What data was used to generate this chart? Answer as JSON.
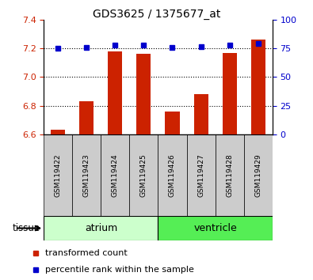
{
  "title": "GDS3625 / 1375677_at",
  "samples": [
    "GSM119422",
    "GSM119423",
    "GSM119424",
    "GSM119425",
    "GSM119426",
    "GSM119427",
    "GSM119428",
    "GSM119429"
  ],
  "bar_values": [
    6.63,
    6.83,
    7.18,
    7.16,
    6.76,
    6.88,
    7.17,
    7.26
  ],
  "percentile_values": [
    75,
    76,
    78,
    78,
    75.5,
    76.5,
    78,
    79
  ],
  "bar_bottom": 6.6,
  "ylim_left": [
    6.6,
    7.4
  ],
  "ylim_right": [
    0,
    100
  ],
  "yticks_left": [
    6.6,
    6.8,
    7.0,
    7.2,
    7.4
  ],
  "yticks_right": [
    0,
    25,
    50,
    75,
    100
  ],
  "dotted_lines": [
    6.8,
    7.0,
    7.2
  ],
  "bar_color": "#cc2200",
  "dot_color": "#0000cc",
  "tissue_groups": [
    {
      "label": "atrium",
      "samples": [
        0,
        1,
        2,
        3
      ],
      "color": "#ccffcc",
      "dark_color": "#66ee66"
    },
    {
      "label": "ventricle",
      "samples": [
        4,
        5,
        6,
        7
      ],
      "color": "#66ee66",
      "dark_color": "#33cc33"
    }
  ],
  "tissue_label": "tissue",
  "legend_items": [
    {
      "label": "transformed count",
      "color": "#cc2200"
    },
    {
      "label": "percentile rank within the sample",
      "color": "#0000cc"
    }
  ],
  "tick_label_color_left": "#cc2200",
  "tick_label_color_right": "#0000cc",
  "bar_width": 0.5,
  "sample_box_color": "#cccccc",
  "atrium_color": "#ccffcc",
  "ventricle_color": "#55ee55"
}
